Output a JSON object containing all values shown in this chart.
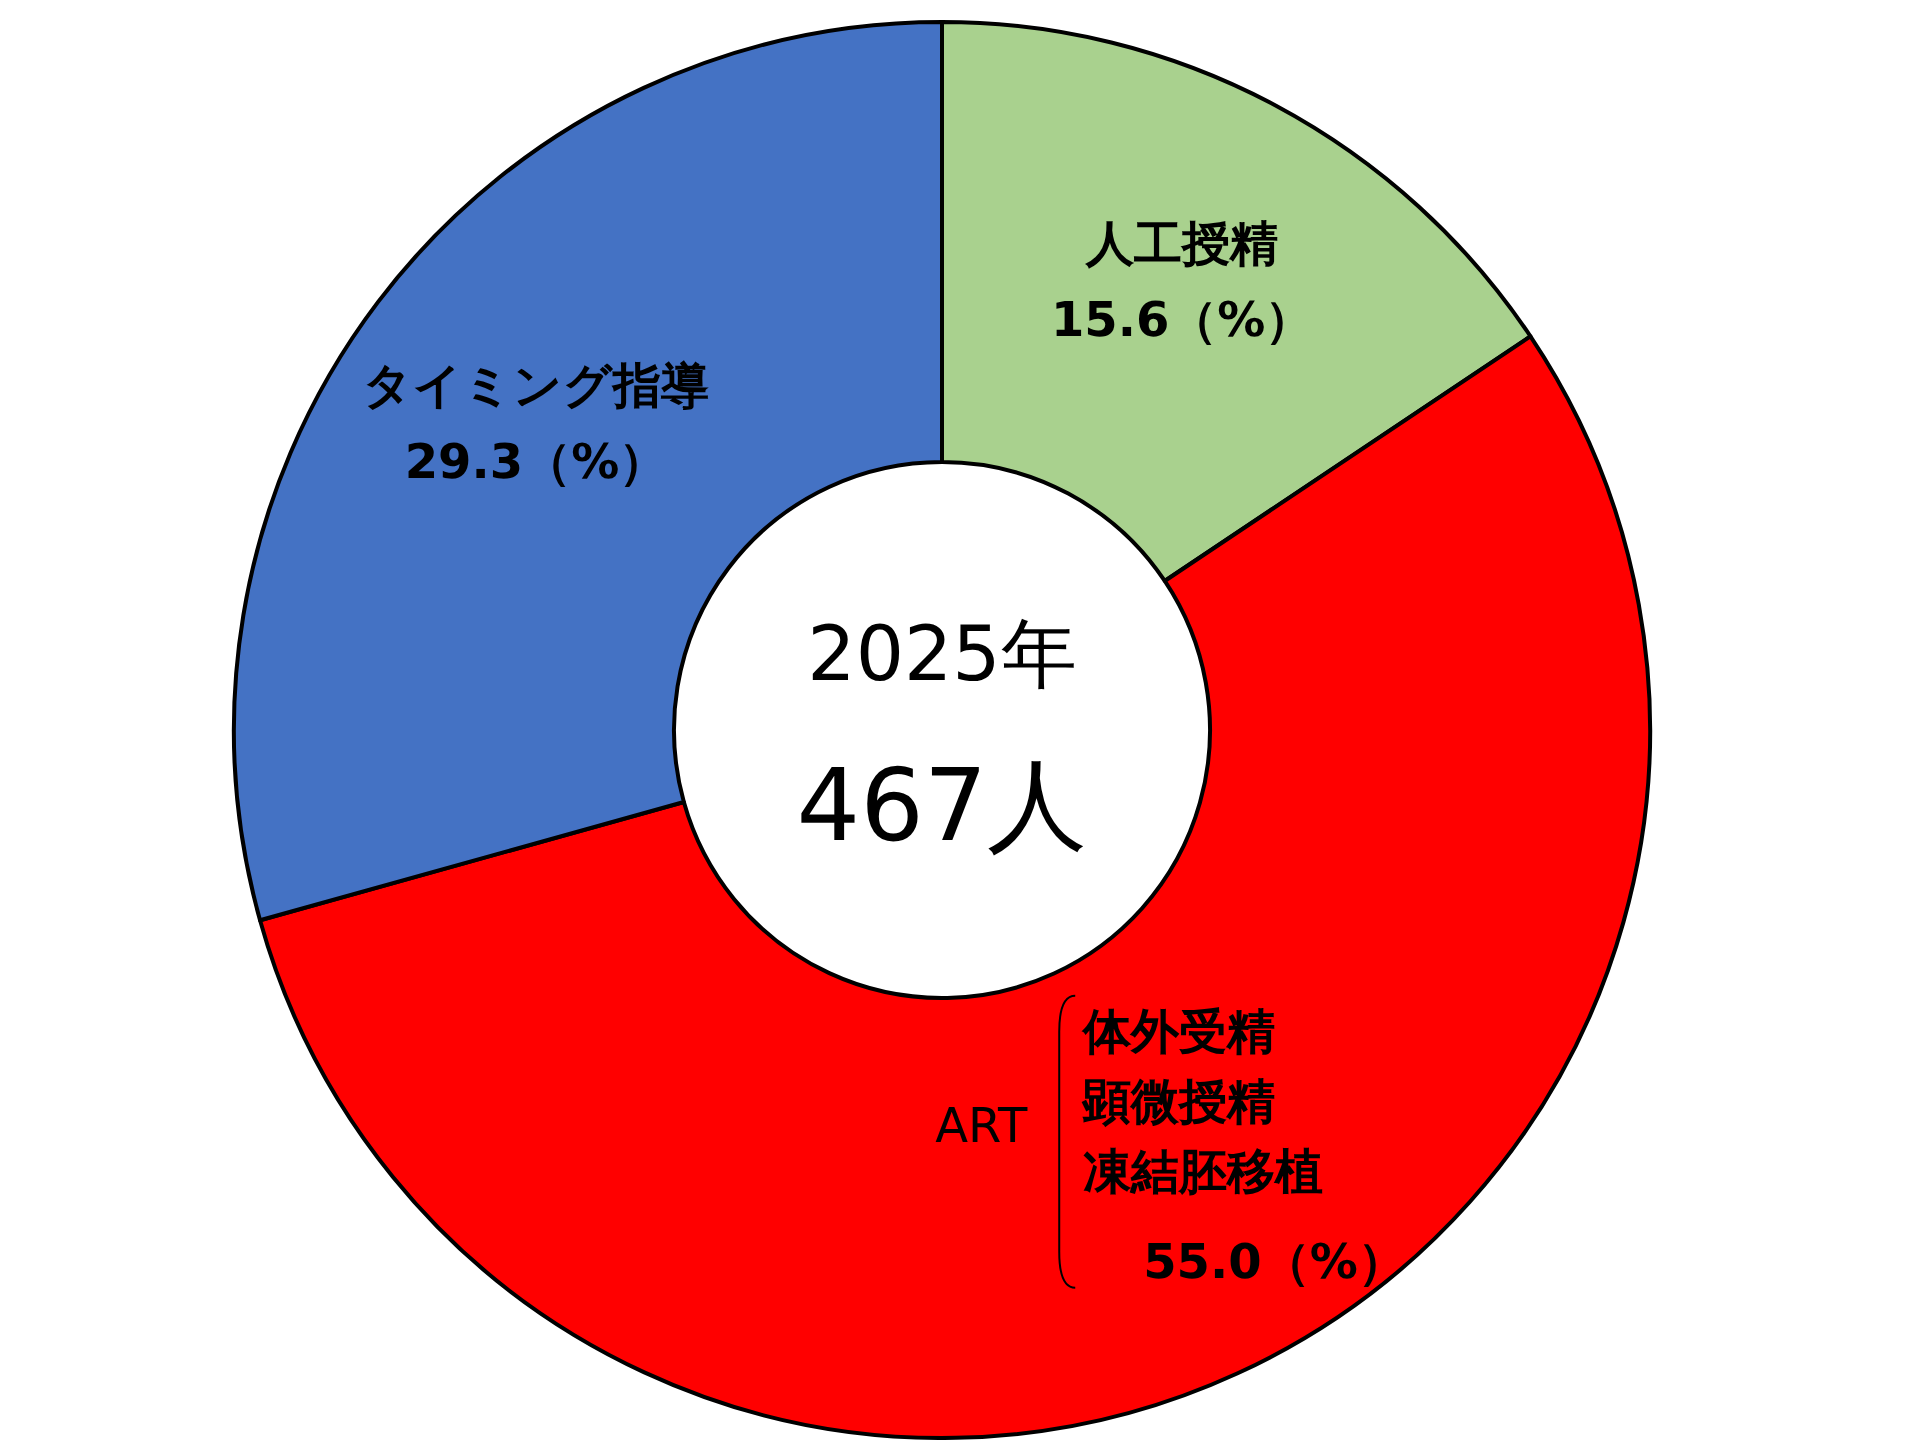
{
  "chart_data": {
    "type": "donut",
    "title": "2025年",
    "subtitle": "467人",
    "categories": [
      "人工授精",
      "ART",
      "タイミング指導"
    ],
    "values": [
      15.6,
      55.0,
      29.3
    ],
    "colors": [
      "#a9d18e",
      "#ff0000",
      "#4472c4"
    ],
    "value_labels": [
      "15.6（%）",
      "55.0（%）",
      "29.3（%）"
    ],
    "annotations": [
      {
        "text": "体外受精",
        "x": "ART"
      },
      {
        "text": "顕微授精",
        "x": "ART"
      },
      {
        "text": "凍結胚移植",
        "x": "ART"
      }
    ]
  }
}
